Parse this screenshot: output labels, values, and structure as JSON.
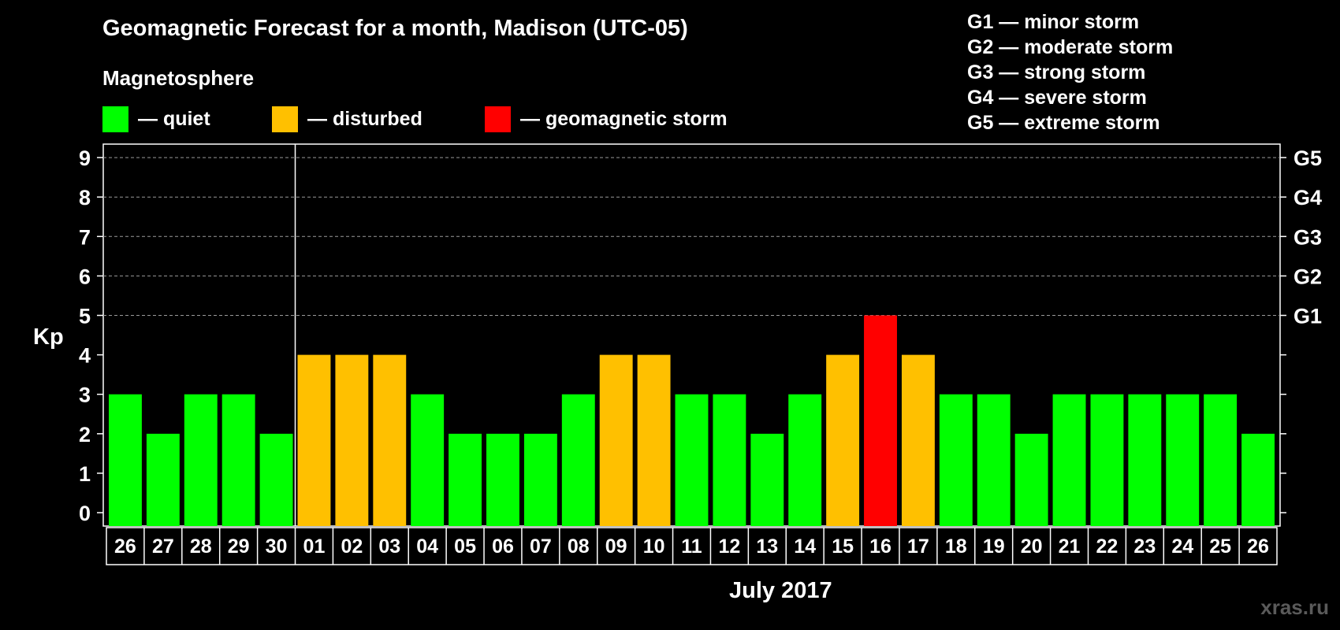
{
  "title": "Geomagnetic Forecast for a month, Madison (UTC-05)",
  "legend": {
    "heading": "Magnetosphere",
    "items": [
      {
        "label": "— quiet",
        "color": "#00ff00"
      },
      {
        "label": "— disturbed",
        "color": "#ffc000"
      },
      {
        "label": "— geomagnetic storm",
        "color": "#ff0000"
      }
    ]
  },
  "storm_scale": [
    "G1 — minor storm",
    "G2 — moderate storm",
    "G3 — strong storm",
    "G4 — severe storm",
    "G5 — extreme storm"
  ],
  "month_label": "July 2017",
  "watermark": "xras.ru",
  "chart_data": {
    "type": "bar",
    "ylabel": "Kp",
    "xlabel": "July 2017",
    "ylim": [
      0,
      9
    ],
    "y_ticks": [
      0,
      1,
      2,
      3,
      4,
      5,
      6,
      7,
      8,
      9
    ],
    "grid": "dashed horizontal lines at Kp 5 to 9",
    "right_axis_labels": [
      {
        "value": 5,
        "label": "G1"
      },
      {
        "value": 6,
        "label": "G2"
      },
      {
        "value": 7,
        "label": "G3"
      },
      {
        "value": 8,
        "label": "G4"
      },
      {
        "value": 9,
        "label": "G5"
      }
    ],
    "month_divider_after": "30",
    "categories": [
      "26",
      "27",
      "28",
      "29",
      "30",
      "01",
      "02",
      "03",
      "04",
      "05",
      "06",
      "07",
      "08",
      "09",
      "10",
      "11",
      "12",
      "13",
      "14",
      "15",
      "16",
      "17",
      "18",
      "19",
      "20",
      "21",
      "22",
      "23",
      "24",
      "25",
      "26"
    ],
    "values": [
      3,
      2,
      3,
      3,
      2,
      4,
      4,
      4,
      3,
      2,
      2,
      2,
      3,
      4,
      4,
      3,
      3,
      2,
      3,
      4,
      5,
      4,
      3,
      3,
      2,
      3,
      3,
      3,
      3,
      3,
      2
    ],
    "colors": {
      "quiet": "#00ff00",
      "disturbed": "#ffc000",
      "storm": "#ff0000"
    }
  }
}
